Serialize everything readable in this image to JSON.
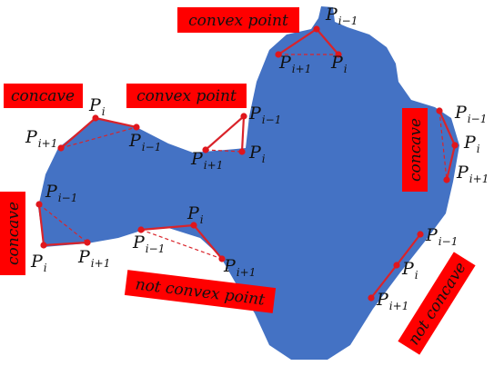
{
  "colors": {
    "shape_fill": "#4472c4",
    "label_bg": "#ff0000",
    "highlight": "#d9232a",
    "point": "#e0161c",
    "text": "#111111"
  },
  "tags": {
    "convex_point_top": "convex point",
    "convex_point_mid": "convex point",
    "concave_upper_left": "concave",
    "concave_lower_left": "concave",
    "concave_right": "concave",
    "not_convex_point": "not convex point",
    "not_concave": "not concave"
  },
  "point_labels": {
    "base": "P",
    "prev_sub": "i−1",
    "cur_sub": "i",
    "next_sub": "i+1"
  }
}
